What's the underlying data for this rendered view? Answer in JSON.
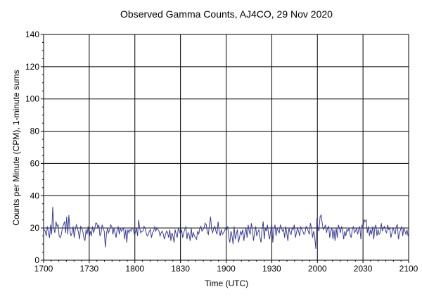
{
  "chart_data": {
    "type": "line",
    "title": "Observed Gamma Counts, AJ4CO, 29 Nov 2020",
    "xlabel": "Time (UTC)",
    "ylabel": "Counts per Minute (CPM), 1-minute sums",
    "xlim": [
      "17:00",
      "21:00"
    ],
    "ylim": [
      0,
      140
    ],
    "x_ticks": [
      "1700",
      "1730",
      "1800",
      "1830",
      "1900",
      "1930",
      "2000",
      "2030",
      "2100"
    ],
    "y_ticks": [
      "0",
      "20",
      "40",
      "60",
      "80",
      "100",
      "120",
      "140"
    ],
    "grid": true,
    "legend": "none",
    "line_color": "#3c3c96",
    "x_start": "17:00",
    "x_step": "1 min",
    "series": [
      {
        "values": [
          19,
          18,
          15,
          21,
          17,
          14,
          22,
          16,
          33,
          20,
          17,
          24,
          21,
          22,
          15,
          14,
          16,
          20,
          22,
          24,
          17,
          27,
          16,
          28,
          19,
          15,
          17,
          21,
          14,
          19,
          22,
          20,
          17,
          13,
          21,
          20,
          18,
          14,
          12,
          19,
          16,
          21,
          14,
          18,
          15,
          21,
          17,
          19,
          23,
          23,
          20,
          22,
          15,
          17,
          22,
          20,
          18,
          8,
          16,
          20,
          17,
          19,
          22,
          21,
          16,
          20,
          17,
          14,
          19,
          21,
          16,
          20,
          18,
          19,
          20,
          13,
          19,
          11,
          19,
          17,
          19,
          18,
          20,
          19,
          16,
          17,
          20,
          15,
          25,
          20,
          17,
          18,
          18,
          21,
          20,
          17,
          15,
          16,
          18,
          19,
          14,
          17,
          18,
          21,
          18,
          20,
          19,
          18,
          15,
          17,
          18,
          16,
          13,
          16,
          18,
          17,
          14,
          19,
          12,
          17,
          15,
          11,
          19,
          16,
          14,
          20,
          18,
          16,
          19,
          14,
          17,
          19,
          21,
          13,
          17,
          16,
          12,
          20,
          14,
          17,
          15,
          14,
          13,
          18,
          16,
          20,
          21,
          18,
          19,
          20,
          23,
          22,
          17,
          16,
          22,
          27,
          19,
          17,
          20,
          21,
          18,
          16,
          24,
          18,
          15,
          19,
          16,
          17,
          18,
          20,
          19,
          21,
          14,
          11,
          18,
          15,
          10,
          21,
          13,
          16,
          19,
          11,
          14,
          18,
          16,
          19,
          12,
          17,
          20,
          14,
          22,
          18,
          16,
          23,
          19,
          12,
          17,
          21,
          15,
          17,
          19,
          14,
          11,
          19,
          24,
          13,
          20,
          18,
          22,
          16,
          13,
          18,
          23,
          11,
          19,
          22,
          15,
          20,
          18,
          17,
          22,
          20,
          18,
          19,
          14,
          21,
          17,
          12,
          20,
          17,
          16,
          20,
          19,
          22,
          14,
          17,
          20,
          18,
          15,
          21,
          19,
          18,
          16,
          17,
          21,
          20,
          18,
          16,
          23,
          20,
          14,
          18,
          15,
          7,
          26,
          20,
          18,
          27,
          28,
          23,
          19,
          20,
          22,
          17,
          20,
          21,
          14,
          18,
          20,
          13,
          19,
          12,
          20,
          14,
          22,
          20,
          17,
          21,
          19,
          13,
          18,
          15,
          19,
          18,
          20,
          16,
          14,
          19,
          21,
          17,
          18,
          20,
          16,
          19,
          21,
          13,
          22,
          20,
          25,
          24,
          25,
          17,
          21,
          15,
          19,
          16,
          21,
          13,
          20,
          22,
          15,
          19,
          16,
          17,
          23,
          18,
          20,
          21,
          18,
          17,
          22,
          19,
          20,
          14,
          17,
          20,
          18,
          16,
          21,
          22,
          13,
          17,
          19,
          21,
          15,
          20,
          18,
          16,
          19,
          15
        ]
      }
    ]
  }
}
